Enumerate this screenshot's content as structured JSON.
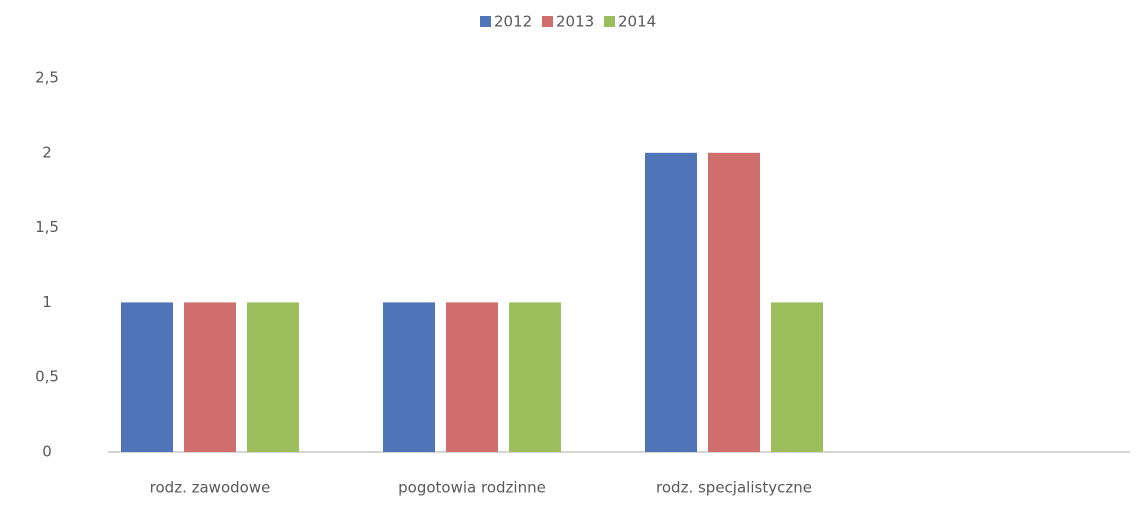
{
  "chart_data": {
    "type": "bar",
    "categories": [
      "rodz. zawodowe",
      "pogotowia rodzinne",
      "rodz. specjalistyczne"
    ],
    "series": [
      {
        "name": "2012",
        "color": "#4f74b8",
        "values": [
          1,
          1,
          2
        ]
      },
      {
        "name": "2013",
        "color": "#d06e6c",
        "values": [
          1,
          1,
          2
        ]
      },
      {
        "name": "2014",
        "color": "#9cbd5c",
        "values": [
          1,
          1,
          1
        ]
      }
    ],
    "ylim": [
      0,
      2.5
    ],
    "yticks": [
      0,
      {
        "value": 0.5,
        "label": "0,5"
      },
      1,
      {
        "value": 1.5,
        "label": "1,5"
      },
      2,
      {
        "value": 2.5,
        "label": "2,5"
      }
    ],
    "legend": "top"
  }
}
